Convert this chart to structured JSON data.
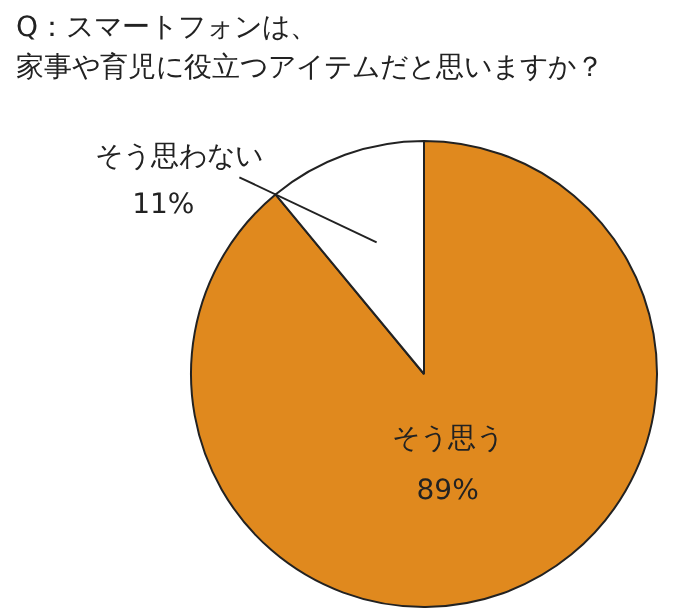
{
  "chart_data": {
    "type": "pie",
    "title": "Q：スマートフォンは、家事や育児に役立つアイテムだと思いますか？",
    "categories": [
      "そう思う",
      "そう思わない"
    ],
    "values": [
      89,
      11
    ],
    "colors": [
      "#e0891e",
      "#ffffff"
    ],
    "value_labels": [
      "89%",
      "11%"
    ],
    "legend": false
  }
}
